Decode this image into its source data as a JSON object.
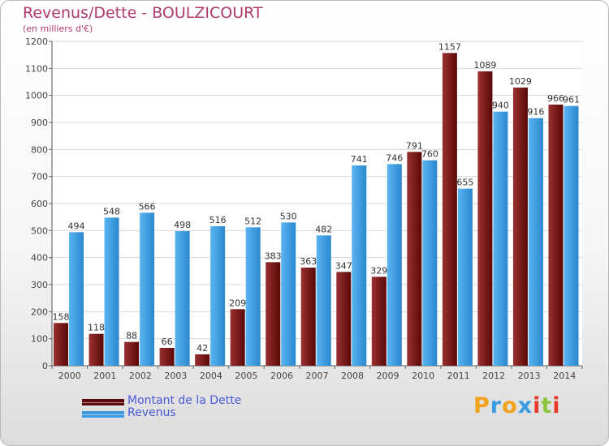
{
  "title": "Revenus/Dette - BOULZICOURT",
  "subtitle": "(en milliers d'€)",
  "chart_data": {
    "type": "bar",
    "categories": [
      "2000",
      "2001",
      "2002",
      "2003",
      "2004",
      "2005",
      "2006",
      "2007",
      "2008",
      "2009",
      "2010",
      "2011",
      "2012",
      "2013",
      "2014"
    ],
    "series": [
      {
        "name": "Montant de la Dette",
        "color": "#7a1a1a",
        "values": [
          158,
          118,
          88,
          66,
          42,
          209,
          383,
          363,
          347,
          329,
          791,
          1157,
          1089,
          1029,
          966
        ]
      },
      {
        "name": "Revenus",
        "color": "#3a9be0",
        "values": [
          494,
          548,
          566,
          498,
          516,
          512,
          530,
          482,
          741,
          746,
          760,
          655,
          940,
          916,
          961
        ]
      }
    ],
    "ylim": [
      0,
      1200
    ],
    "yticks": [
      0,
      100,
      200,
      300,
      400,
      500,
      600,
      700,
      800,
      900,
      1000,
      1100,
      1200
    ],
    "xlabel": "",
    "ylabel": "",
    "grid": true,
    "legend_position": "bottom-left"
  },
  "legend": [
    {
      "label": "Montant de la Dette",
      "swatch_color": "#5a0a0a",
      "text_color": "#4a5ad8"
    },
    {
      "label": "Revenus",
      "swatch_color": "#3a9be0",
      "text_color": "#4a5ad8"
    }
  ],
  "logo": {
    "letters": [
      "P",
      "r",
      "o",
      "x",
      "i",
      "t",
      "i"
    ],
    "colors": [
      "#f2a31b",
      "#3a9be0",
      "#f2a31b",
      "#3a9be0",
      "#e53a2b",
      "#8cc63f",
      "#e53a2b"
    ]
  }
}
